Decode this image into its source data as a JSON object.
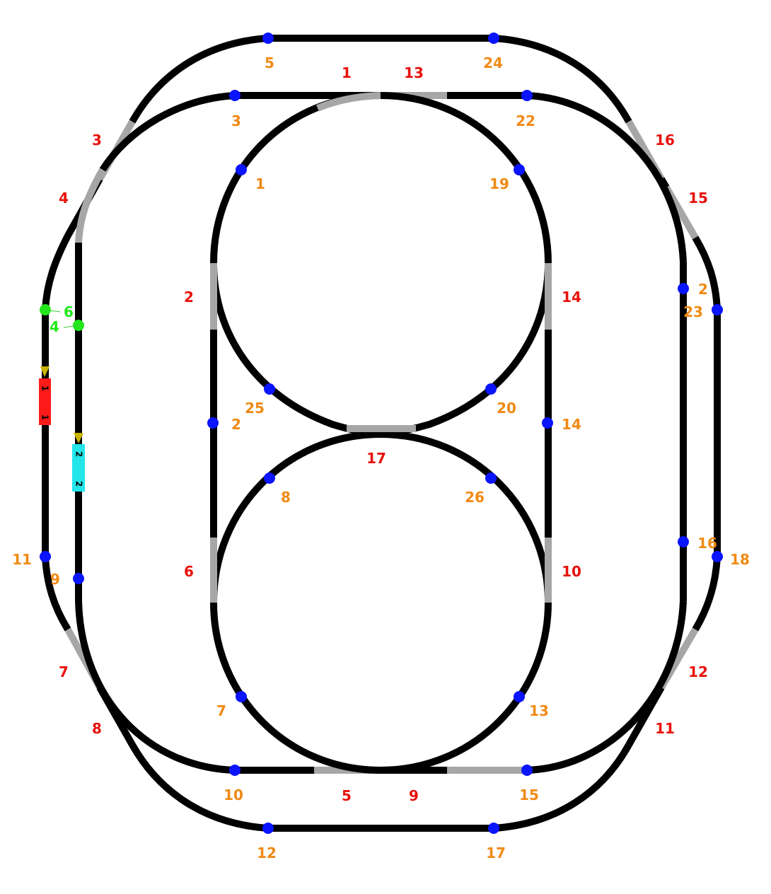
{
  "colors": {
    "track": "#000000",
    "inactive_track": "#a6a6a6",
    "switch_label": "#e8120c",
    "sensor": "#0a14ff",
    "sensor_label": "#f08a14",
    "active_sensor": "#22e81a",
    "train_1": "#ff1a1a",
    "train_2": "#22e6ea",
    "train_marker": "#c8b400"
  },
  "switch_labels": [
    "1",
    "13",
    "3",
    "4",
    "2",
    "6",
    "7",
    "8",
    "5",
    "9",
    "16",
    "15",
    "14",
    "10",
    "12",
    "11",
    "17"
  ],
  "sensor_labels": [
    "5",
    "24",
    "3",
    "22",
    "1",
    "19",
    "2",
    "23",
    "25",
    "20",
    "2",
    "14",
    "8",
    "26",
    "16",
    "18",
    "11",
    "9",
    "7",
    "13",
    "10",
    "15",
    "12",
    "17"
  ],
  "active_sensor_labels": [
    "6",
    "4"
  ],
  "trains": [
    {
      "id": "1",
      "label": "1",
      "marker": "1"
    },
    {
      "id": "2",
      "label": "2",
      "marker": "2"
    }
  ]
}
